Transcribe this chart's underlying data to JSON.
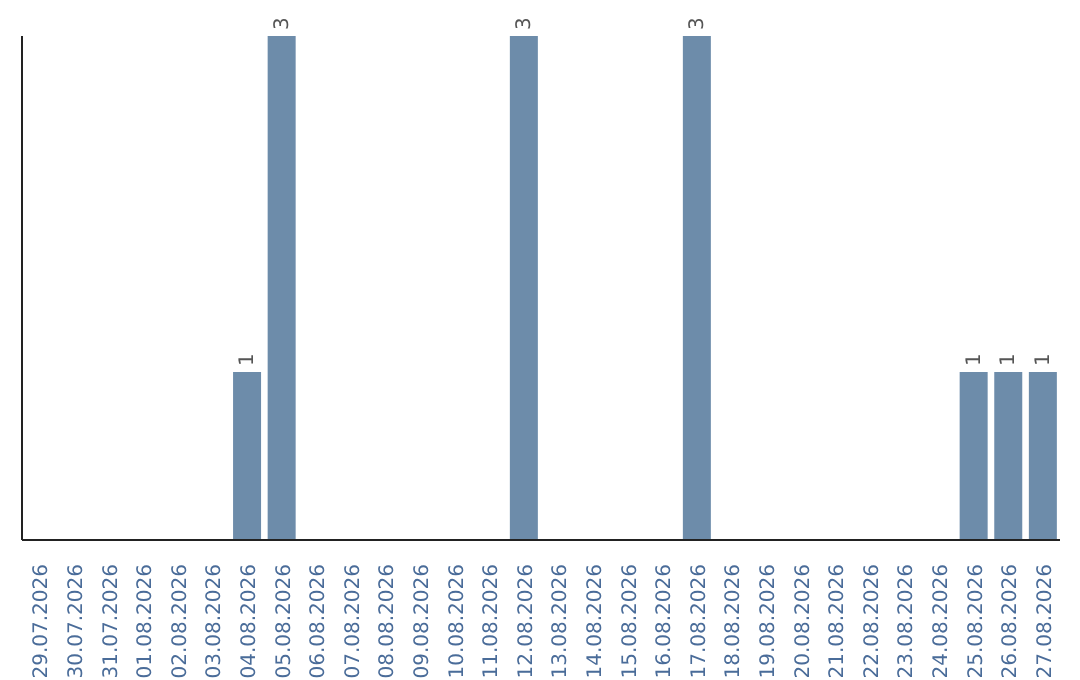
{
  "chart_data": {
    "type": "bar",
    "categories": [
      "29.07.2026",
      "30.07.2026",
      "31.07.2026",
      "01.08.2026",
      "02.08.2026",
      "03.08.2026",
      "04.08.2026",
      "05.08.2026",
      "06.08.2026",
      "07.08.2026",
      "08.08.2026",
      "09.08.2026",
      "10.08.2026",
      "11.08.2026",
      "12.08.2026",
      "13.08.2026",
      "14.08.2026",
      "15.08.2026",
      "16.08.2026",
      "17.08.2026",
      "18.08.2026",
      "19.08.2026",
      "20.08.2026",
      "21.08.2026",
      "22.08.2026",
      "23.08.2026",
      "24.08.2026",
      "25.08.2026",
      "26.08.2026",
      "27.08.2026"
    ],
    "values": [
      0,
      0,
      0,
      0,
      0,
      0,
      1,
      3,
      0,
      0,
      0,
      0,
      0,
      0,
      3,
      0,
      0,
      0,
      0,
      3,
      0,
      0,
      0,
      0,
      0,
      0,
      0,
      1,
      1,
      1
    ],
    "value_labels": [
      null,
      null,
      null,
      null,
      null,
      null,
      "1",
      "3",
      null,
      null,
      null,
      null,
      null,
      null,
      "3",
      null,
      null,
      null,
      null,
      "3",
      null,
      null,
      null,
      null,
      null,
      null,
      null,
      "1",
      "1",
      "1"
    ],
    "color": "#6d8caa",
    "tick_labels": "x"
  }
}
